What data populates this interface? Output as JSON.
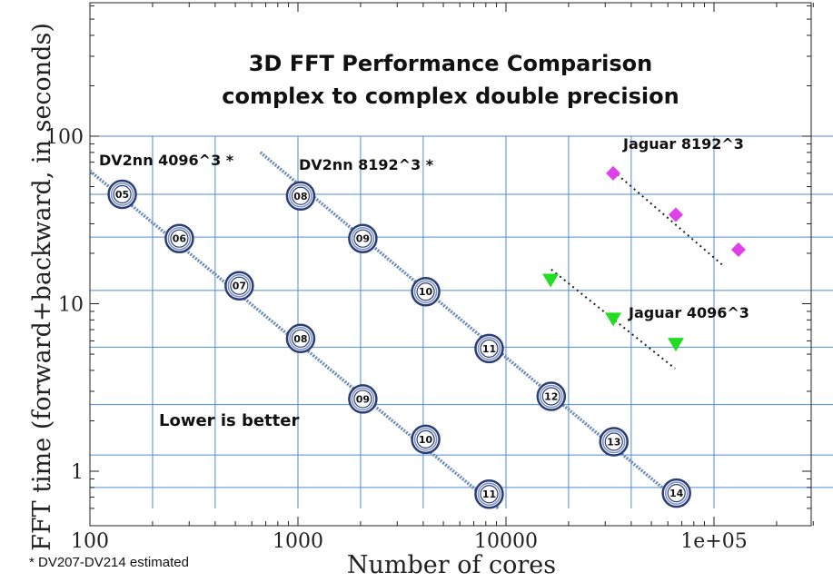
{
  "chart_data": {
    "type": "scatter",
    "title": "3D FFT Performance Comparison",
    "subtitle": "complex to complex double precision",
    "xlabel": "Number of cores",
    "ylabel": "FFT time (forward+backward, in seconds)",
    "xscale": "log",
    "yscale": "log",
    "xlim": [
      100,
      300000
    ],
    "ylim": [
      0.58,
      600
    ],
    "x_tick_labels": [
      {
        "value": 100,
        "label": "100"
      },
      {
        "value": 1000,
        "label": "1000"
      },
      {
        "value": 10000,
        "label": "10000"
      },
      {
        "value": 100000,
        "label": "1e+05"
      }
    ],
    "y_tick_labels": [
      {
        "value": 1,
        "label": "1"
      },
      {
        "value": 10,
        "label": "10"
      },
      {
        "value": 100,
        "label": "100"
      }
    ],
    "grid": true,
    "annotation": "Lower is better",
    "footnote": "* DV207-DV214 estimated",
    "series": [
      {
        "name": "DV2nn 4096^3 *",
        "marker": "ring",
        "color": "#3a4f8a",
        "points": [
          {
            "x": 143,
            "y": 45,
            "label": "05"
          },
          {
            "x": 269,
            "y": 24.5,
            "label": "06"
          },
          {
            "x": 522,
            "y": 12.8,
            "label": "07"
          },
          {
            "x": 1030,
            "y": 6.2,
            "label": "08"
          },
          {
            "x": 2050,
            "y": 2.7,
            "label": "09"
          },
          {
            "x": 4110,
            "y": 1.55,
            "label": "10"
          },
          {
            "x": 8300,
            "y": 0.73,
            "label": "11"
          }
        ],
        "trend": {
          "from": [
            100,
            62
          ],
          "to": [
            9200,
            0.6
          ],
          "color": "#6a8ab8"
        }
      },
      {
        "name": "DV2nn 8192^3 *",
        "marker": "ring",
        "color": "#3a4f8a",
        "points": [
          {
            "x": 1030,
            "y": 44,
            "label": "08"
          },
          {
            "x": 2050,
            "y": 24.5,
            "label": "09"
          },
          {
            "x": 4110,
            "y": 11.8,
            "label": "10"
          },
          {
            "x": 8300,
            "y": 5.4,
            "label": "11"
          },
          {
            "x": 16500,
            "y": 2.8,
            "label": "12"
          },
          {
            "x": 33000,
            "y": 1.5,
            "label": "13"
          },
          {
            "x": 66000,
            "y": 0.74,
            "label": "14"
          }
        ],
        "trend": {
          "from": [
            660,
            80
          ],
          "to": [
            72000,
            0.62
          ],
          "color": "#6a8ab8"
        }
      },
      {
        "name": "Jaguar 8192^3",
        "marker": "diamond",
        "color": "#e040e8",
        "points": [
          {
            "x": 32768,
            "y": 60
          },
          {
            "x": 65536,
            "y": 34
          },
          {
            "x": 131072,
            "y": 21
          }
        ],
        "trend": {
          "from": [
            32768,
            62
          ],
          "to": [
            110000,
            17
          ],
          "color": "#222222"
        }
      },
      {
        "name": "Jaguar 4096^3",
        "marker": "triangle-down",
        "color": "#22dd22",
        "points": [
          {
            "x": 16384,
            "y": 14
          },
          {
            "x": 32768,
            "y": 8.2
          },
          {
            "x": 65536,
            "y": 5.8
          }
        ],
        "trend": {
          "from": [
            16500,
            16
          ],
          "to": [
            65000,
            4.1
          ],
          "color": "#222222"
        }
      }
    ]
  }
}
